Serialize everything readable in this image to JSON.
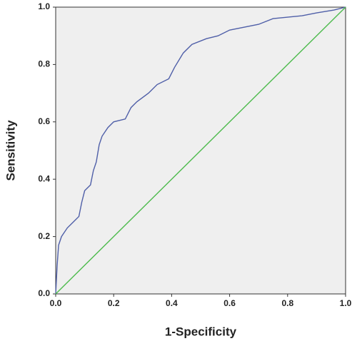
{
  "chart_data": {
    "type": "line",
    "x_label": "1-Specificity",
    "y_label": "Sensitivity",
    "xlim": [
      0,
      1
    ],
    "ylim": [
      0,
      1
    ],
    "xticks": [
      {
        "value": 0,
        "label": "0.0"
      },
      0.2,
      0.4,
      0.6,
      0.8,
      {
        "value": 1,
        "label": "1.0"
      }
    ],
    "yticks": [
      {
        "value": 0,
        "label": "0.0"
      },
      0.2,
      0.4,
      0.6,
      0.8,
      {
        "value": 1,
        "label": "1.0"
      }
    ],
    "grid": false,
    "background": "#efefef",
    "series": [
      {
        "color": "#4f5fa8",
        "x": [
          0,
          0.005,
          0.01,
          0.02,
          0.04,
          0.06,
          0.08,
          0.09,
          0.1,
          0.12,
          0.13,
          0.14,
          0.15,
          0.16,
          0.18,
          0.2,
          0.24,
          0.26,
          0.28,
          0.32,
          0.35,
          0.39,
          0.41,
          0.44,
          0.47,
          0.52,
          0.56,
          0.6,
          0.7,
          0.75,
          0.85,
          0.9,
          0.96,
          1
        ],
        "values": [
          0,
          0.1,
          0.17,
          0.2,
          0.23,
          0.25,
          0.27,
          0.32,
          0.36,
          0.38,
          0.43,
          0.46,
          0.52,
          0.55,
          0.58,
          0.6,
          0.61,
          0.65,
          0.67,
          0.7,
          0.73,
          0.75,
          0.79,
          0.84,
          0.87,
          0.89,
          0.9,
          0.92,
          0.94,
          0.96,
          0.97,
          0.98,
          0.99,
          1
        ]
      },
      {
        "color": "#4dbb4d",
        "x": [
          0,
          1
        ],
        "values": [
          0,
          1
        ]
      }
    ]
  }
}
